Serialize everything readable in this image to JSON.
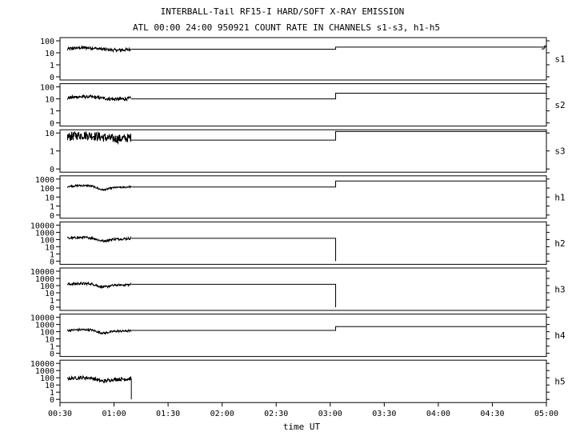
{
  "chart_data": {
    "type": "line",
    "title": "INTERBALL-Tail RF15-I HARD/SOFT X-RAY EMISSION",
    "subtitle": "ATL 00:00 24:00 950921  COUNT RATE IN CHANNELS s1-s3, h1-h5",
    "xlabel": "time UT",
    "x_ticks": [
      "00:30",
      "01:00",
      "01:30",
      "02:00",
      "02:30",
      "03:00",
      "03:30",
      "04:00",
      "04:30",
      "05:00"
    ],
    "x_range_hours": [
      0.5,
      5.0
    ],
    "y_scale": "log",
    "grid": false,
    "panels": [
      {
        "name": "s1",
        "y_ticks": [
          "100",
          "10",
          "1",
          "0"
        ],
        "ymax": 100,
        "noise_start": 0.57,
        "noise_end": 1.16,
        "noise_level": 21,
        "noise_spread": 0.12,
        "step_before": 20,
        "step_time": 3.05,
        "step_after": 30,
        "end_noise": true
      },
      {
        "name": "s2",
        "y_ticks": [
          "100",
          "10",
          "1",
          "0"
        ],
        "ymax": 100,
        "noise_start": 0.57,
        "noise_end": 1.16,
        "noise_level": 12,
        "noise_spread": 0.14,
        "step_before": 10,
        "step_time": 3.05,
        "step_after": 30,
        "end_noise": false
      },
      {
        "name": "s3",
        "y_ticks": [
          "10",
          "1",
          "0"
        ],
        "ymax": 40,
        "noise_start": 0.57,
        "noise_end": 1.16,
        "noise_level": 6,
        "noise_spread": 0.25,
        "step_before": 4,
        "step_time": 3.05,
        "step_after": 12,
        "end_noise": false
      },
      {
        "name": "h1",
        "y_ticks": [
          "1000",
          "100",
          "10",
          "1",
          "0"
        ],
        "ymax": 1000,
        "noise_start": 0.57,
        "noise_end": 1.16,
        "noise_level": 150,
        "noise_spread": 0.08,
        "step_before": 130,
        "step_time": 3.05,
        "step_after": 600,
        "end_noise": false
      },
      {
        "name": "h2",
        "y_ticks": [
          "10000",
          "1000",
          "100",
          "10",
          "1",
          "0"
        ],
        "ymax": 10000,
        "noise_start": 0.57,
        "noise_end": 1.16,
        "noise_level": 150,
        "noise_spread": 0.15,
        "step_before": 150,
        "step_time": 3.05,
        "step_after": 0,
        "end_noise": false
      },
      {
        "name": "h3",
        "y_ticks": [
          "10000",
          "1000",
          "100",
          "10",
          "1",
          "0"
        ],
        "ymax": 10000,
        "noise_start": 0.57,
        "noise_end": 1.16,
        "noise_level": 150,
        "noise_spread": 0.15,
        "step_before": 150,
        "step_time": 3.05,
        "step_after": 0,
        "end_noise": false
      },
      {
        "name": "h4",
        "y_ticks": [
          "10000",
          "1000",
          "100",
          "10",
          "1",
          "0"
        ],
        "ymax": 10000,
        "noise_start": 0.57,
        "noise_end": 1.16,
        "noise_level": 150,
        "noise_spread": 0.12,
        "step_before": 150,
        "step_time": 3.05,
        "step_after": 500,
        "end_noise": false
      },
      {
        "name": "h5",
        "y_ticks": [
          "10000",
          "1000",
          "100",
          "10",
          "1",
          "0"
        ],
        "ymax": 10000,
        "noise_start": 0.57,
        "noise_end": 1.16,
        "noise_level": 80,
        "noise_spread": 0.25,
        "step_before": 80,
        "step_time": 1.16,
        "step_after": 0,
        "end_noise": false
      }
    ]
  }
}
